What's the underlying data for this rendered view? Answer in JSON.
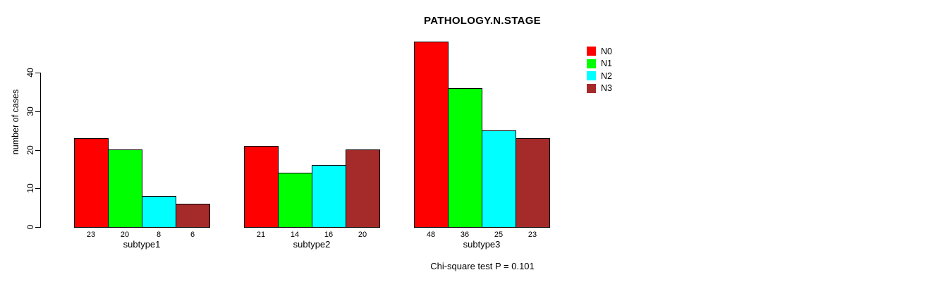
{
  "chart_data": {
    "type": "bar",
    "title": "PATHOLOGY.N.STAGE",
    "ylabel": "number of cases",
    "xlabel": "",
    "categories": [
      "subtype1",
      "subtype2",
      "subtype3"
    ],
    "series": [
      {
        "name": "N0",
        "color": "#ff0000",
        "values": [
          23,
          21,
          48
        ]
      },
      {
        "name": "N1",
        "color": "#00ff00",
        "values": [
          20,
          14,
          36
        ]
      },
      {
        "name": "N2",
        "color": "#00ffff",
        "values": [
          8,
          16,
          25
        ]
      },
      {
        "name": "N3",
        "color": "#a52a2a",
        "values": [
          6,
          20,
          23
        ]
      }
    ],
    "yticks": [
      0,
      10,
      20,
      30,
      40
    ],
    "ylim": [
      0,
      48
    ],
    "grid": false,
    "legend_position": "top-right",
    "bar_value_labels": true,
    "annotation": "Chi-square test P = 0.101",
    "axis_color": "#000000",
    "background_color": "#ffffff"
  }
}
